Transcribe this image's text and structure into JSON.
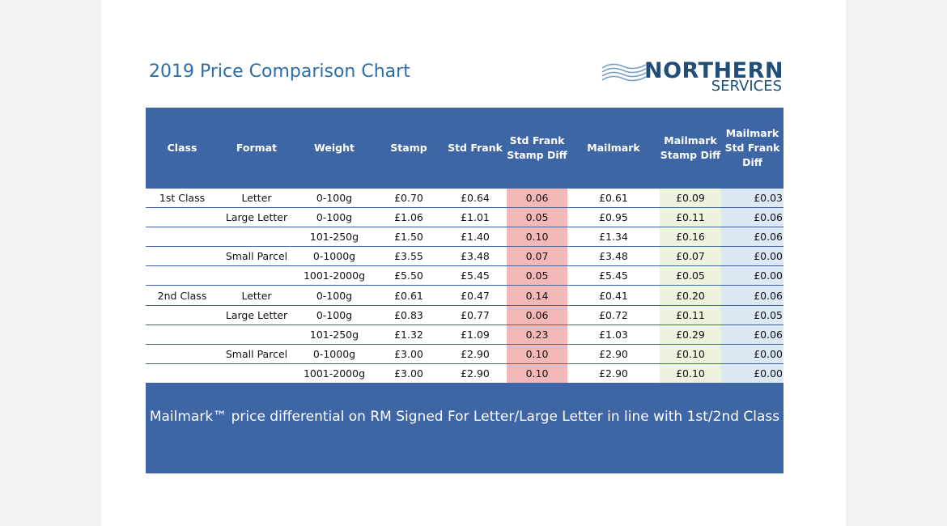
{
  "title": "2019 Price Comparison Chart",
  "logo": {
    "name": "NORTHERN",
    "sub": "SERVICES"
  },
  "colors": {
    "header": "#3e65a4",
    "title": "#2e6ea6",
    "diff": "#f2b8b8",
    "mailmark_stamp": "#eef3dd",
    "mailmark_frank": "#dce9f5"
  },
  "table": {
    "headers": [
      "Class",
      "Format",
      "Weight",
      "Stamp",
      "Std Frank",
      "Std Frank\nStamp Diff",
      "Mailmark",
      "Mailmark\nStamp Diff",
      "Mailmark\nStd Frank\nDiff"
    ],
    "rows": [
      [
        "1st Class",
        "Letter",
        "0-100g",
        "£0.70",
        "£0.64",
        "0.06",
        "£0.61",
        "£0.09",
        "£0.03"
      ],
      [
        "",
        "Large Letter",
        "0-100g",
        "£1.06",
        "£1.01",
        "0.05",
        "£0.95",
        "£0.11",
        "£0.06"
      ],
      [
        "",
        "",
        "101-250g",
        "£1.50",
        "£1.40",
        "0.10",
        "£1.34",
        "£0.16",
        "£0.06"
      ],
      [
        "",
        "Small Parcel",
        "0-1000g",
        "£3.55",
        "£3.48",
        "0.07",
        "£3.48",
        "£0.07",
        "£0.00"
      ],
      [
        "",
        "",
        "1001-2000g",
        "£5.50",
        "£5.45",
        "0.05",
        "£5.45",
        "£0.05",
        "£0.00"
      ],
      [
        "2nd Class",
        "Letter",
        "0-100g",
        "£0.61",
        "£0.47",
        "0.14",
        "£0.41",
        "£0.20",
        "£0.06"
      ],
      [
        "",
        "Large Letter",
        "0-100g",
        "£0.83",
        "£0.77",
        "0.06",
        "£0.72",
        "£0.11",
        "£0.05"
      ],
      [
        "",
        "",
        "101-250g",
        "£1.32",
        "£1.09",
        "0.23",
        "£1.03",
        "£0.29",
        "£0.06"
      ],
      [
        "",
        "Small Parcel",
        "0-1000g",
        "£3.00",
        "£2.90",
        "0.10",
        "£2.90",
        "£0.10",
        "£0.00"
      ],
      [
        "",
        "",
        "1001-2000g",
        "£3.00",
        "£2.90",
        "0.10",
        "£2.90",
        "£0.10",
        "£0.00"
      ]
    ]
  },
  "footer": "Mailmark™ price differential on RM Signed For Letter/Large Letter in line with 1st/2nd Class"
}
